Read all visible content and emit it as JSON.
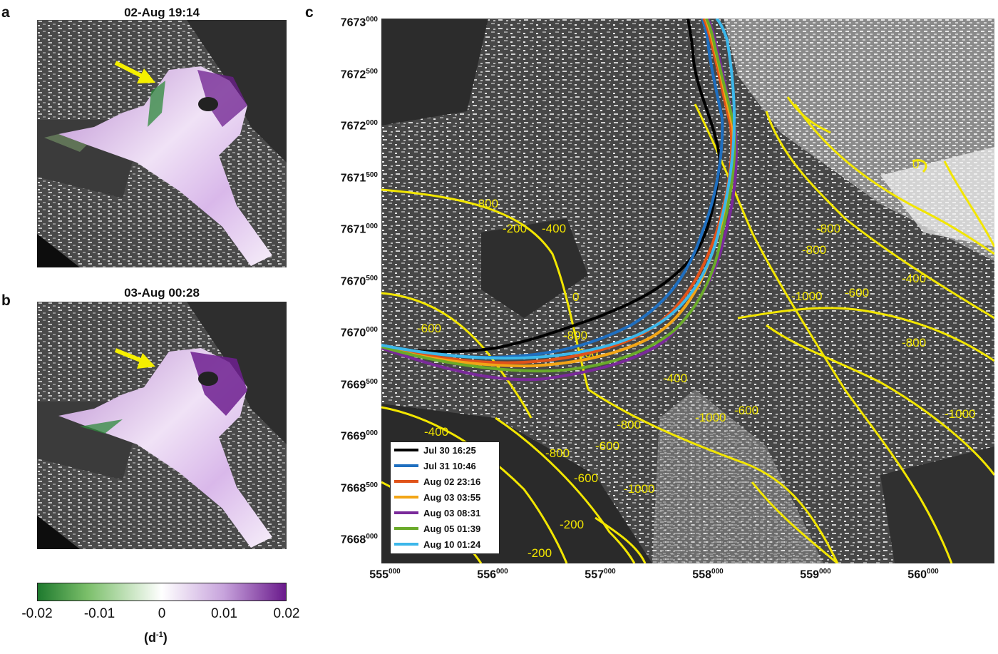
{
  "panels": {
    "a": {
      "letter": "a",
      "title": "02-Aug 19:14"
    },
    "b": {
      "letter": "b",
      "title": "03-Aug 00:28"
    },
    "c": {
      "letter": "c"
    }
  },
  "colorbar": {
    "ticks": [
      "-0.02",
      "-0.01",
      "0",
      "0.01",
      "0.02"
    ],
    "unit_base": "(d",
    "unit_exp": "-1",
    "unit_close": ")",
    "colors": {
      "negative": "#1e7a2e",
      "neutral": "#ffffff",
      "positive": "#6a1a8c"
    }
  },
  "map": {
    "y_ticks": [
      {
        "base": "7673",
        "exp": "000"
      },
      {
        "base": "7672",
        "exp": "500"
      },
      {
        "base": "7672",
        "exp": "000"
      },
      {
        "base": "7671",
        "exp": "500"
      },
      {
        "base": "7671",
        "exp": "000"
      },
      {
        "base": "7670",
        "exp": "500"
      },
      {
        "base": "7670",
        "exp": "000"
      },
      {
        "base": "7669",
        "exp": "500"
      },
      {
        "base": "7669",
        "exp": "000"
      },
      {
        "base": "7668",
        "exp": "500"
      },
      {
        "base": "7668",
        "exp": "000"
      }
    ],
    "x_ticks": [
      {
        "base": "555",
        "exp": "000"
      },
      {
        "base": "556",
        "exp": "000"
      },
      {
        "base": "557",
        "exp": "000"
      },
      {
        "base": "558",
        "exp": "000"
      },
      {
        "base": "559",
        "exp": "000"
      },
      {
        "base": "560",
        "exp": "000"
      }
    ],
    "contour_color": "#f2e600",
    "contour_labels": [
      "-800",
      "-600",
      "-400",
      "-200",
      "0",
      "-800",
      "-800",
      "-600",
      "-1000",
      "-1000",
      "-600",
      "-400",
      "-200",
      "-600",
      "-800",
      "-600",
      "-400",
      "-200",
      "-800",
      "-800",
      "-1000",
      "-400",
      "-600",
      "-800",
      "-1000",
      "0"
    ]
  },
  "legend": [
    {
      "label": "Jul 30 16:25",
      "color": "#000000"
    },
    {
      "label": "Jul 31 10:46",
      "color": "#1f6fc0"
    },
    {
      "label": "Aug 02 23:16",
      "color": "#e0531a"
    },
    {
      "label": "Aug 03 03:55",
      "color": "#f2a516"
    },
    {
      "label": "Aug 03 08:31",
      "color": "#7a2a9a"
    },
    {
      "label": "Aug 05 01:39",
      "color": "#6aaa2a"
    },
    {
      "label": "Aug 10 01:24",
      "color": "#3cb7ea"
    }
  ],
  "annotation": {
    "arrow_color": "#f5ef00"
  }
}
